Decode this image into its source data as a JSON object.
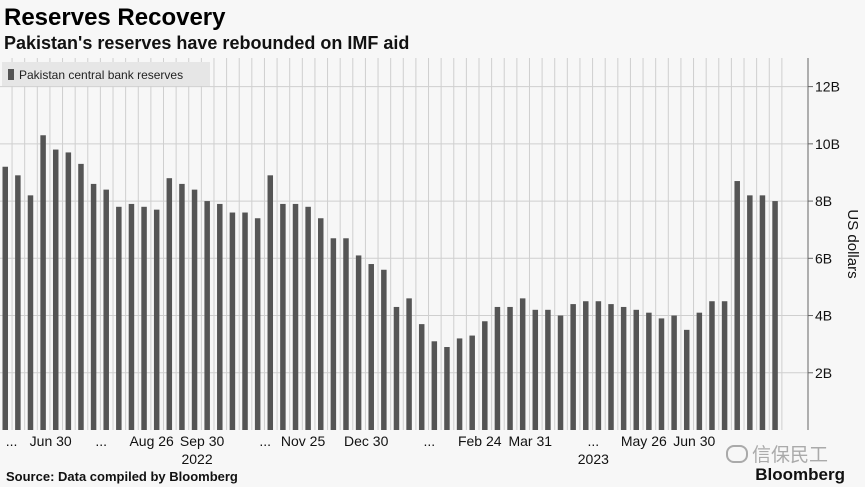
{
  "header": {
    "title": "Reserves Recovery",
    "subtitle": "Pakistan's reserves have rebounded on IMF aid"
  },
  "footer": {
    "source": "Source: Data compiled by Bloomberg",
    "brand": "Bloomberg"
  },
  "watermark": {
    "text": "信保民工",
    "icon": "wechat-icon"
  },
  "colors": {
    "bar": "#555555",
    "grid": "#cfcfcf",
    "background": "#f7f7f7",
    "legend_bg": "#e6e6e6"
  },
  "chart_data": {
    "type": "bar",
    "legend": "Pakistan central bank reserves",
    "legend_placement": "top-left",
    "ylabel": "US dollars",
    "y_axis_side": "right",
    "ylim": [
      0,
      13
    ],
    "yticks": [
      {
        "value": 2,
        "label": "2B"
      },
      {
        "value": 4,
        "label": "4B"
      },
      {
        "value": 6,
        "label": "6B"
      },
      {
        "value": 8,
        "label": "8B"
      },
      {
        "value": 10,
        "label": "10B"
      },
      {
        "value": 12,
        "label": "12B"
      }
    ],
    "grid": true,
    "values": [
      9.2,
      8.9,
      8.2,
      10.3,
      9.8,
      9.7,
      9.3,
      8.6,
      8.4,
      7.8,
      7.9,
      7.8,
      7.7,
      8.8,
      8.6,
      8.4,
      8.0,
      7.9,
      7.6,
      7.6,
      7.4,
      8.9,
      7.9,
      7.9,
      7.8,
      7.4,
      6.7,
      6.7,
      6.1,
      5.8,
      5.6,
      4.3,
      4.6,
      3.7,
      3.1,
      2.9,
      3.2,
      3.3,
      3.8,
      4.3,
      4.3,
      4.6,
      4.2,
      4.2,
      4.0,
      4.4,
      4.5,
      4.5,
      4.4,
      4.3,
      4.2,
      4.1,
      3.9,
      4.0,
      3.5,
      4.1,
      4.5,
      4.5,
      8.7,
      8.2,
      8.2,
      8.0
    ],
    "x_tick_labels": [
      {
        "index": 0.5,
        "label": "..."
      },
      {
        "index": 3.6,
        "label": "Jun 30"
      },
      {
        "index": 7.6,
        "label": "..."
      },
      {
        "index": 11.6,
        "label": "Aug 26"
      },
      {
        "index": 15.6,
        "label": "Sep 30"
      },
      {
        "index": 20.6,
        "label": "..."
      },
      {
        "index": 23.6,
        "label": "Nov 25"
      },
      {
        "index": 28.6,
        "label": "Dec 30"
      },
      {
        "index": 33.6,
        "label": "..."
      },
      {
        "index": 37.6,
        "label": "Feb 24"
      },
      {
        "index": 41.6,
        "label": "Mar 31"
      },
      {
        "index": 46.6,
        "label": "..."
      },
      {
        "index": 50.6,
        "label": "May 26"
      },
      {
        "index": 54.6,
        "label": "Jun 30"
      }
    ],
    "year_labels": [
      {
        "index": 15.2,
        "label": "2022"
      },
      {
        "index": 46.6,
        "label": "2023"
      }
    ]
  }
}
